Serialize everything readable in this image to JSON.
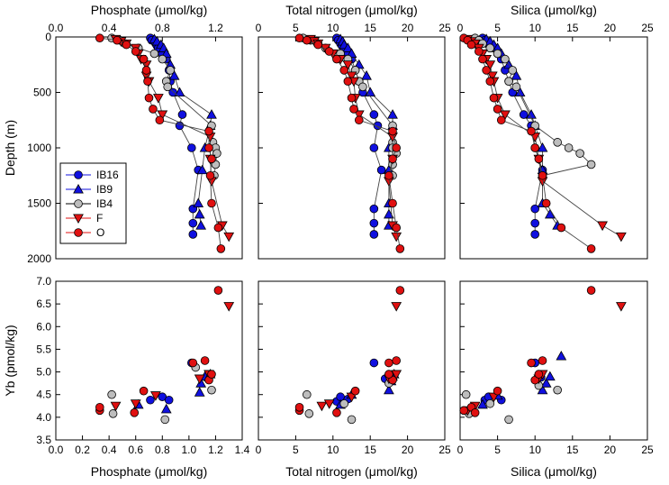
{
  "chart_data": [
    {
      "type": "line",
      "panel": "top-phosphate",
      "xlabel": "Phosphate (μmol/kg)",
      "ylabel": "Depth (m)",
      "xlim": [
        0,
        1.4
      ],
      "ylim": [
        0,
        2000
      ],
      "y_inverted": true,
      "x_axis_position": "top",
      "xticks": [
        "0.0",
        "0.4",
        "0.8",
        "1.2"
      ],
      "xtick_values": [
        0,
        0.4,
        0.8,
        1.2
      ],
      "yticks": [
        "0",
        "500",
        "1000",
        "1500",
        "2000"
      ],
      "ytick_values": [
        0,
        500,
        1000,
        1500,
        2000
      ],
      "series": [
        {
          "name": "IB16",
          "x": [
            0.71,
            0.72,
            0.75,
            0.76,
            0.77,
            0.8,
            0.83,
            0.85,
            0.86,
            0.88,
            0.95,
            0.93,
            1.02,
            1.07,
            1.03,
            1.03,
            1.03
          ],
          "y": [
            10,
            30,
            60,
            80,
            100,
            150,
            200,
            300,
            400,
            500,
            700,
            800,
            1000,
            1200,
            1550,
            1680,
            1780
          ]
        },
        {
          "name": "IB9",
          "x": [
            0.74,
            0.76,
            0.79,
            0.81,
            0.83,
            0.86,
            0.89,
            0.93,
            1.17,
            1.16,
            1.12,
            1.1,
            1.07,
            1.08,
            1.09
          ],
          "y": [
            20,
            40,
            70,
            100,
            150,
            250,
            350,
            500,
            700,
            800,
            1000,
            1200,
            1500,
            1600,
            1700
          ]
        },
        {
          "name": "IB4",
          "x": [
            0.42,
            0.48,
            0.52,
            0.62,
            0.74,
            0.8,
            0.86,
            0.83,
            0.84,
            1.17,
            1.18,
            1.2,
            1.21,
            1.2,
            1.19
          ],
          "y": [
            10,
            30,
            60,
            100,
            150,
            200,
            300,
            400,
            450,
            800,
            950,
            1000,
            1050,
            1150,
            1250
          ]
        },
        {
          "name": "F",
          "x": [
            0.45,
            0.49,
            0.53,
            0.6,
            0.62,
            0.64,
            0.68,
            0.68,
            0.7,
            0.77,
            0.8,
            1.16,
            1.16,
            1.17,
            1.25,
            1.3
          ],
          "y": [
            20,
            40,
            60,
            100,
            150,
            200,
            250,
            350,
            400,
            550,
            700,
            900,
            1100,
            1300,
            1700,
            1800
          ]
        },
        {
          "name": "O",
          "x": [
            0.33,
            0.46,
            0.53,
            0.6,
            0.66,
            0.68,
            0.69,
            0.7,
            0.73,
            0.78,
            1.15,
            1.15,
            1.17,
            1.16,
            1.17,
            1.22,
            1.24
          ],
          "y": [
            10,
            30,
            70,
            130,
            200,
            300,
            400,
            550,
            650,
            750,
            850,
            1000,
            1100,
            1250,
            1500,
            1720,
            1910
          ]
        }
      ],
      "legend": [
        "IB16",
        "IB9",
        "IB4",
        "F",
        "O"
      ],
      "legend_location": "lower-left"
    },
    {
      "type": "line",
      "panel": "top-total-nitrogen",
      "xlabel": "Total nitrogen (μmol/kg)",
      "xlim": [
        0,
        25
      ],
      "ylim": [
        0,
        2000
      ],
      "y_inverted": true,
      "x_axis_position": "top",
      "xticks": [
        "0",
        "5",
        "10",
        "15",
        "20",
        "25"
      ],
      "xtick_values": [
        0,
        5,
        10,
        15,
        20,
        25
      ],
      "series": [
        {
          "name": "IB16",
          "x": [
            10.5,
            10.7,
            11.0,
            11.2,
            11.5,
            12.0,
            12.5,
            13.0,
            13.5,
            14.0,
            15.5,
            16.0,
            15.5,
            16.5,
            15.5,
            15.5,
            15.5
          ],
          "y": [
            10,
            30,
            60,
            80,
            100,
            150,
            200,
            300,
            400,
            500,
            700,
            800,
            1000,
            1200,
            1550,
            1680,
            1780
          ]
        },
        {
          "name": "IB9",
          "x": [
            11.0,
            11.3,
            11.5,
            12.0,
            12.5,
            13.5,
            14.5,
            15.0,
            18.0,
            18.0,
            17.5,
            17.5,
            17.5,
            17.5,
            17.5
          ],
          "y": [
            20,
            40,
            70,
            100,
            150,
            250,
            350,
            500,
            700,
            800,
            1000,
            1200,
            1500,
            1600,
            1700
          ]
        },
        {
          "name": "IB4",
          "x": [
            6.0,
            7.0,
            8.0,
            9.0,
            11.0,
            12.0,
            13.0,
            13.5,
            14.0,
            18.0,
            18.0,
            18.0,
            18.5,
            18.0,
            18.0
          ],
          "y": [
            10,
            30,
            60,
            100,
            150,
            200,
            300,
            400,
            450,
            800,
            950,
            1000,
            1050,
            1150,
            1250
          ]
        },
        {
          "name": "F",
          "x": [
            7.0,
            7.5,
            8.0,
            9.0,
            10.0,
            11.0,
            12.0,
            12.5,
            12.8,
            13.0,
            13.5,
            18.0,
            18.0,
            17.5,
            18.0,
            18.5
          ],
          "y": [
            20,
            40,
            60,
            100,
            150,
            200,
            250,
            350,
            400,
            550,
            700,
            900,
            1100,
            1300,
            1700,
            1800
          ]
        },
        {
          "name": "O",
          "x": [
            5.5,
            6.5,
            8.0,
            9.5,
            10.5,
            11.5,
            12.0,
            12.5,
            12.8,
            13.5,
            18.0,
            18.5,
            18.0,
            17.5,
            18.0,
            18.5,
            19.0
          ],
          "y": [
            10,
            30,
            70,
            130,
            200,
            300,
            400,
            550,
            650,
            750,
            850,
            1000,
            1100,
            1250,
            1500,
            1720,
            1910
          ]
        }
      ]
    },
    {
      "type": "line",
      "panel": "top-silica",
      "xlabel": "Silica (μmol/kg)",
      "xlim": [
        0,
        25
      ],
      "ylim": [
        0,
        2000
      ],
      "y_inverted": true,
      "x_axis_position": "top",
      "xticks": [
        "0",
        "5",
        "10",
        "15",
        "20",
        "25"
      ],
      "xtick_values": [
        0,
        5,
        10,
        15,
        20,
        25
      ],
      "series": [
        {
          "name": "IB16",
          "x": [
            3.0,
            3.3,
            3.6,
            4.0,
            4.5,
            5.0,
            5.5,
            6.0,
            6.5,
            7.0,
            8.5,
            9.5,
            10.0,
            11.0,
            10.0,
            10.0,
            10.0
          ],
          "y": [
            10,
            30,
            60,
            80,
            100,
            150,
            200,
            300,
            400,
            500,
            700,
            800,
            1000,
            1200,
            1550,
            1680,
            1780
          ]
        },
        {
          "name": "IB9",
          "x": [
            3.5,
            4.0,
            4.5,
            5.0,
            5.5,
            6.5,
            7.5,
            8.0,
            9.5,
            10.0,
            11.0,
            11.0,
            11.0,
            12.0,
            13.0
          ],
          "y": [
            20,
            40,
            70,
            100,
            150,
            250,
            350,
            500,
            700,
            800,
            1000,
            1200,
            1500,
            1600,
            1700
          ]
        },
        {
          "name": "IB4",
          "x": [
            2.0,
            2.5,
            3.0,
            4.0,
            5.0,
            6.0,
            7.0,
            6.5,
            7.5,
            10.0,
            13.0,
            14.5,
            16.0,
            17.5,
            11.0
          ],
          "y": [
            10,
            30,
            60,
            100,
            150,
            200,
            300,
            400,
            450,
            800,
            950,
            1000,
            1050,
            1150,
            1250
          ]
        },
        {
          "name": "F",
          "x": [
            1.0,
            1.5,
            2.0,
            2.5,
            3.0,
            3.5,
            4.0,
            4.3,
            4.5,
            5.0,
            6.0,
            10.0,
            10.5,
            11.0,
            19.0,
            21.5
          ],
          "y": [
            20,
            40,
            60,
            100,
            150,
            200,
            250,
            350,
            400,
            550,
            700,
            900,
            1100,
            1300,
            1700,
            1800
          ]
        },
        {
          "name": "O",
          "x": [
            0.5,
            1.0,
            1.5,
            2.5,
            3.0,
            3.5,
            4.0,
            4.5,
            5.0,
            5.5,
            9.5,
            10.0,
            10.5,
            11.0,
            11.5,
            13.5,
            17.5
          ],
          "y": [
            10,
            30,
            70,
            130,
            200,
            300,
            400,
            550,
            650,
            750,
            850,
            1000,
            1100,
            1250,
            1500,
            1720,
            1910
          ]
        }
      ]
    },
    {
      "type": "scatter",
      "panel": "bottom-phosphate",
      "xlabel": "Phosphate (μmol/kg)",
      "ylabel": "Yb (pmol/kg)",
      "xlim": [
        0,
        1.4
      ],
      "ylim": [
        3.5,
        7.0
      ],
      "xticks": [
        "0.0",
        "0.2",
        "0.4",
        "0.6",
        "0.8",
        "1.0",
        "1.2",
        "1.4"
      ],
      "xtick_values": [
        0,
        0.2,
        0.4,
        0.6,
        0.8,
        1.0,
        1.2,
        1.4
      ],
      "yticks": [
        "3.5",
        "4.0",
        "4.5",
        "5.0",
        "5.5",
        "6.0",
        "6.5",
        "7.0"
      ],
      "ytick_values": [
        3.5,
        4.0,
        4.5,
        5.0,
        5.5,
        6.0,
        6.5,
        7.0
      ],
      "series": [
        {
          "name": "IB16",
          "x": [
            0.71,
            0.8,
            0.85,
            1.02,
            1.13
          ],
          "y": [
            4.38,
            4.45,
            4.38,
            5.2,
            4.88
          ]
        },
        {
          "name": "IB9",
          "x": [
            0.62,
            0.83,
            1.08,
            1.09,
            1.12,
            1.16
          ],
          "y": [
            4.28,
            4.18,
            4.55,
            4.75,
            4.9,
            4.95
          ]
        },
        {
          "name": "IB4",
          "x": [
            0.42,
            0.43,
            0.82,
            1.05,
            1.17
          ],
          "y": [
            4.5,
            4.08,
            3.95,
            5.1,
            4.6
          ]
        },
        {
          "name": "F",
          "x": [
            0.45,
            0.6,
            0.75,
            1.08,
            1.15,
            1.3
          ],
          "y": [
            4.25,
            4.3,
            4.48,
            4.85,
            4.95,
            6.45
          ]
        },
        {
          "name": "O",
          "x": [
            0.33,
            0.33,
            0.59,
            0.66,
            1.03,
            1.12,
            1.15,
            1.17,
            1.22
          ],
          "y": [
            4.15,
            4.22,
            4.1,
            4.58,
            5.2,
            5.25,
            4.82,
            4.95,
            6.8
          ]
        }
      ]
    },
    {
      "type": "scatter",
      "panel": "bottom-total-nitrogen",
      "xlabel": "Total nitrogen (μmol/kg)",
      "xlim": [
        0,
        25
      ],
      "ylim": [
        3.5,
        7.0
      ],
      "xticks": [
        "0",
        "5",
        "10",
        "15",
        "20",
        "25"
      ],
      "xtick_values": [
        0,
        5,
        10,
        15,
        20,
        25
      ],
      "series": [
        {
          "name": "IB16",
          "x": [
            10.5,
            11.0,
            12.0,
            15.5,
            17.0
          ],
          "y": [
            4.35,
            4.45,
            4.4,
            5.2,
            4.85
          ]
        },
        {
          "name": "IB9",
          "x": [
            11.0,
            12.5,
            17.5,
            17.8,
            18.0,
            18.2
          ],
          "y": [
            4.28,
            4.5,
            4.6,
            4.8,
            4.9,
            4.95
          ]
        },
        {
          "name": "IB4",
          "x": [
            6.5,
            6.8,
            11.5,
            12.5,
            17.5
          ],
          "y": [
            4.5,
            4.08,
            4.3,
            3.95,
            4.75
          ]
        },
        {
          "name": "F",
          "x": [
            8.5,
            9.5,
            12.5,
            17.5,
            18.5,
            18.5
          ],
          "y": [
            4.25,
            4.3,
            4.45,
            4.85,
            4.95,
            6.45
          ]
        },
        {
          "name": "O",
          "x": [
            5.5,
            5.5,
            10.5,
            13.0,
            17.5,
            18.5,
            18.0,
            17.5,
            19.0
          ],
          "y": [
            4.15,
            4.22,
            4.1,
            4.58,
            5.2,
            5.25,
            4.82,
            4.95,
            6.8
          ]
        }
      ]
    },
    {
      "type": "scatter",
      "panel": "bottom-silica",
      "xlabel": "Silica (μmol/kg)",
      "xlim": [
        0,
        25
      ],
      "ylim": [
        3.5,
        7.0
      ],
      "xticks": [
        "0",
        "5",
        "10",
        "15",
        "20",
        "25"
      ],
      "xtick_values": [
        0,
        5,
        10,
        15,
        20,
        25
      ],
      "series": [
        {
          "name": "IB16",
          "x": [
            3.3,
            3.8,
            5.5,
            10.0,
            10.8
          ],
          "y": [
            4.38,
            4.45,
            4.38,
            5.2,
            4.88
          ]
        },
        {
          "name": "IB9",
          "x": [
            3.0,
            5.0,
            11.0,
            11.5,
            12.0,
            13.5
          ],
          "y": [
            4.28,
            4.48,
            4.6,
            4.75,
            4.9,
            5.35
          ]
        },
        {
          "name": "IB4",
          "x": [
            0.8,
            1.2,
            4.0,
            6.5,
            10.5,
            13.0
          ],
          "y": [
            4.5,
            4.08,
            4.3,
            3.95,
            4.7,
            4.6
          ]
        },
        {
          "name": "F",
          "x": [
            1.0,
            2.0,
            4.5,
            10.5,
            11.0,
            21.5
          ],
          "y": [
            4.15,
            4.25,
            4.45,
            4.85,
            4.95,
            6.45
          ]
        },
        {
          "name": "O",
          "x": [
            0.5,
            1.5,
            2.0,
            5.0,
            9.5,
            11.0,
            10.0,
            10.5,
            17.5
          ],
          "y": [
            4.15,
            4.22,
            4.1,
            4.58,
            5.2,
            5.25,
            4.82,
            4.95,
            6.8
          ]
        }
      ]
    }
  ],
  "colors": {
    "IB16": "#1010e0",
    "IB9": "#1010e0",
    "IB4": "#bdbdbd",
    "F": "#e01010",
    "O": "#e01010",
    "line": "#444444",
    "marker_edge": "#000000"
  }
}
